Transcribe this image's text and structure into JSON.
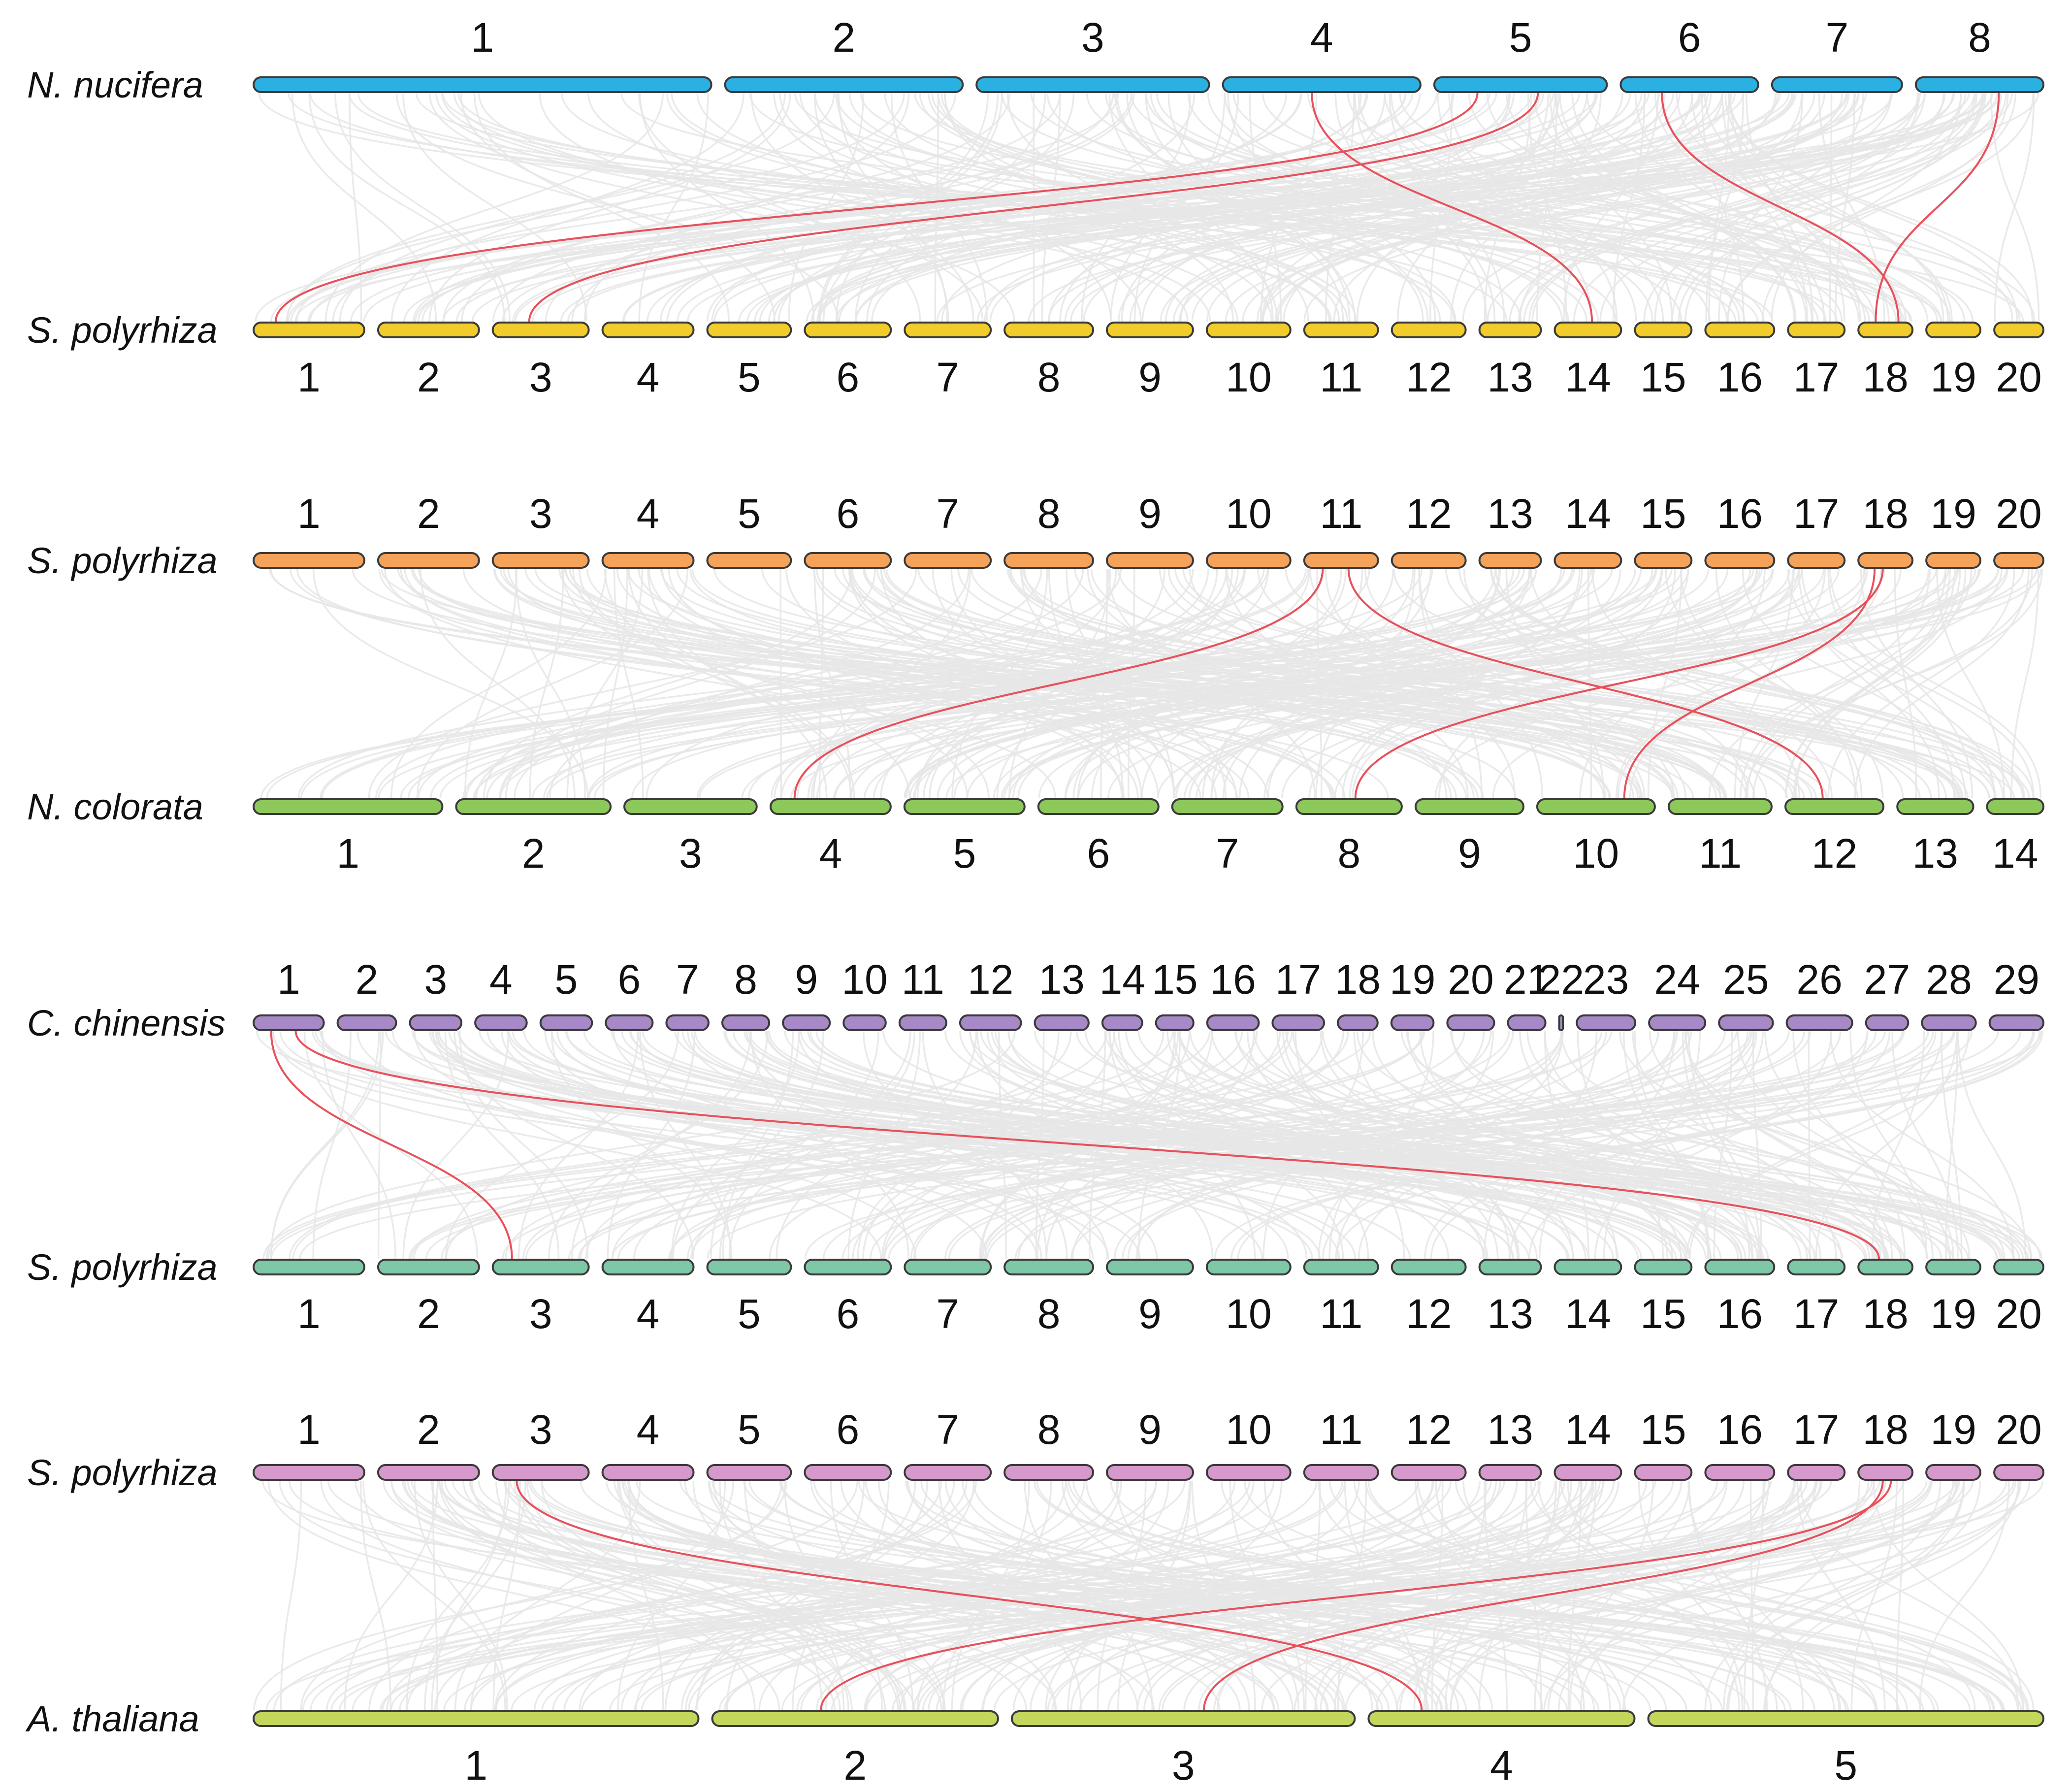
{
  "colors": {
    "background_link": "#e6e6e6",
    "highlight_link": "#e8505b",
    "outline": "#3a3a3a"
  },
  "panels": [
    {
      "top": {
        "species": "N. nucifera",
        "color": "#2bb0e2",
        "chromosomes": [
          "1",
          "2",
          "3",
          "4",
          "5",
          "6",
          "7",
          "8"
        ],
        "rel_sizes": [
          915,
          475,
          465,
          395,
          345,
          275,
          260,
          255
        ]
      },
      "bottom": {
        "species": "S. polyrhiza",
        "color": "#f2cc2a",
        "chromosomes": [
          "1",
          "2",
          "3",
          "4",
          "5",
          "6",
          "7",
          "8",
          "9",
          "10",
          "11",
          "12",
          "13",
          "14",
          "15",
          "16",
          "17",
          "18",
          "19",
          "20"
        ],
        "rel_sizes": [
          225,
          205,
          195,
          185,
          170,
          175,
          175,
          180,
          175,
          170,
          150,
          150,
          125,
          135,
          115,
          140,
          115,
          110,
          110,
          100
        ]
      },
      "highlights": [
        [
          "5",
          "1"
        ],
        [
          "5",
          "3"
        ],
        [
          "4",
          "14"
        ],
        [
          "6",
          "18"
        ],
        [
          "8",
          "18"
        ]
      ]
    },
    {
      "top": {
        "species": "S. polyrhiza",
        "color": "#f5a25a",
        "chromosomes": [
          "1",
          "2",
          "3",
          "4",
          "5",
          "6",
          "7",
          "8",
          "9",
          "10",
          "11",
          "12",
          "13",
          "14",
          "15",
          "16",
          "17",
          "18",
          "19",
          "20"
        ],
        "rel_sizes": [
          225,
          205,
          195,
          185,
          170,
          175,
          175,
          180,
          175,
          170,
          150,
          150,
          125,
          135,
          115,
          140,
          115,
          110,
          110,
          100
        ]
      },
      "bottom": {
        "species": "N. colorata",
        "color": "#8dc85a",
        "chromosomes": [
          "1",
          "2",
          "3",
          "4",
          "5",
          "6",
          "7",
          "8",
          "9",
          "10",
          "11",
          "12",
          "13",
          "14"
        ],
        "rel_sizes": [
          385,
          315,
          270,
          245,
          245,
          245,
          225,
          215,
          220,
          240,
          210,
          200,
          155,
          115
        ]
      },
      "highlights": [
        [
          "11",
          "4"
        ],
        [
          "11",
          "12"
        ],
        [
          "18",
          "8"
        ],
        [
          "18",
          "10"
        ]
      ]
    },
    {
      "top": {
        "species": "C. chinensis",
        "color": "#a889c8",
        "chromosomes": [
          "1",
          "2",
          "3",
          "4",
          "5",
          "6",
          "7",
          "8",
          "9",
          "10",
          "11",
          "12",
          "13",
          "14",
          "15",
          "16",
          "17",
          "18",
          "19",
          "20",
          "21",
          "22",
          "23",
          "24",
          "25",
          "26",
          "27",
          "28",
          "29"
        ],
        "rel_sizes": [
          150,
          125,
          110,
          110,
          110,
          100,
          90,
          100,
          100,
          90,
          100,
          130,
          115,
          85,
          80,
          110,
          110,
          85,
          90,
          100,
          80,
          8,
          125,
          120,
          115,
          140,
          90,
          115,
          115
        ]
      },
      "bottom": {
        "species": "S. polyrhiza",
        "color": "#7ec8a8",
        "chromosomes": [
          "1",
          "2",
          "3",
          "4",
          "5",
          "6",
          "7",
          "8",
          "9",
          "10",
          "11",
          "12",
          "13",
          "14",
          "15",
          "16",
          "17",
          "18",
          "19",
          "20"
        ],
        "rel_sizes": [
          225,
          205,
          195,
          185,
          170,
          175,
          175,
          180,
          175,
          170,
          150,
          150,
          125,
          135,
          115,
          140,
          115,
          110,
          110,
          100
        ]
      },
      "highlights": [
        [
          "1",
          "3"
        ],
        [
          "1",
          "18"
        ]
      ]
    },
    {
      "top": {
        "species": "S. polyrhiza",
        "color": "#d699cc",
        "chromosomes": [
          "1",
          "2",
          "3",
          "4",
          "5",
          "6",
          "7",
          "8",
          "9",
          "10",
          "11",
          "12",
          "13",
          "14",
          "15",
          "16",
          "17",
          "18",
          "19",
          "20"
        ],
        "rel_sizes": [
          225,
          205,
          195,
          185,
          170,
          175,
          175,
          180,
          175,
          170,
          150,
          150,
          125,
          135,
          115,
          140,
          115,
          110,
          110,
          100
        ]
      },
      "bottom": {
        "species": "A. thaliana",
        "color": "#c4d65c",
        "chromosomes": [
          "1",
          "2",
          "3",
          "4",
          "5"
        ],
        "rel_sizes": [
          895,
          575,
          690,
          535,
          795
        ]
      },
      "highlights": [
        [
          "3",
          "4"
        ],
        [
          "18",
          "2"
        ],
        [
          "18",
          "3"
        ]
      ]
    }
  ]
}
